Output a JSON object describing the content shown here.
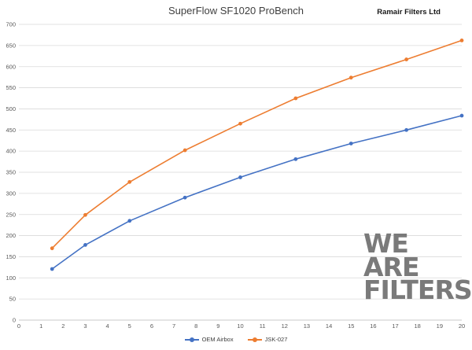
{
  "header": {
    "title": "SuperFlow SF1020 ProBench",
    "brand": "Ramair Filters Ltd"
  },
  "watermark": {
    "lines": [
      "WE",
      "ARE",
      "FILTERS"
    ]
  },
  "chart_data": {
    "type": "line",
    "title": "SuperFlow SF1020 ProBench",
    "xlabel": "",
    "ylabel": "",
    "xlim": [
      0,
      20
    ],
    "ylim": [
      0,
      700
    ],
    "x_ticks": [
      0,
      1,
      2,
      3,
      4,
      5,
      6,
      7,
      8,
      9,
      10,
      11,
      12,
      13,
      14,
      15,
      16,
      17,
      18,
      19,
      20
    ],
    "y_ticks": [
      0,
      50,
      100,
      150,
      200,
      250,
      300,
      350,
      400,
      450,
      500,
      550,
      600,
      650,
      700
    ],
    "grid": "horizontal",
    "legend": "bottom",
    "series": [
      {
        "name": "OEM Airbox",
        "color": "#4472c4",
        "x": [
          1.5,
          3,
          5,
          7.5,
          10,
          12.5,
          15,
          17.5,
          20
        ],
        "y": [
          121,
          178,
          235,
          290,
          338,
          381,
          418,
          450,
          484
        ]
      },
      {
        "name": "JSK-027",
        "color": "#ed7d31",
        "x": [
          1.5,
          3,
          5,
          7.5,
          10,
          12.5,
          15,
          17.5,
          20
        ],
        "y": [
          170,
          249,
          327,
          402,
          465,
          525,
          574,
          617,
          662
        ]
      }
    ]
  }
}
